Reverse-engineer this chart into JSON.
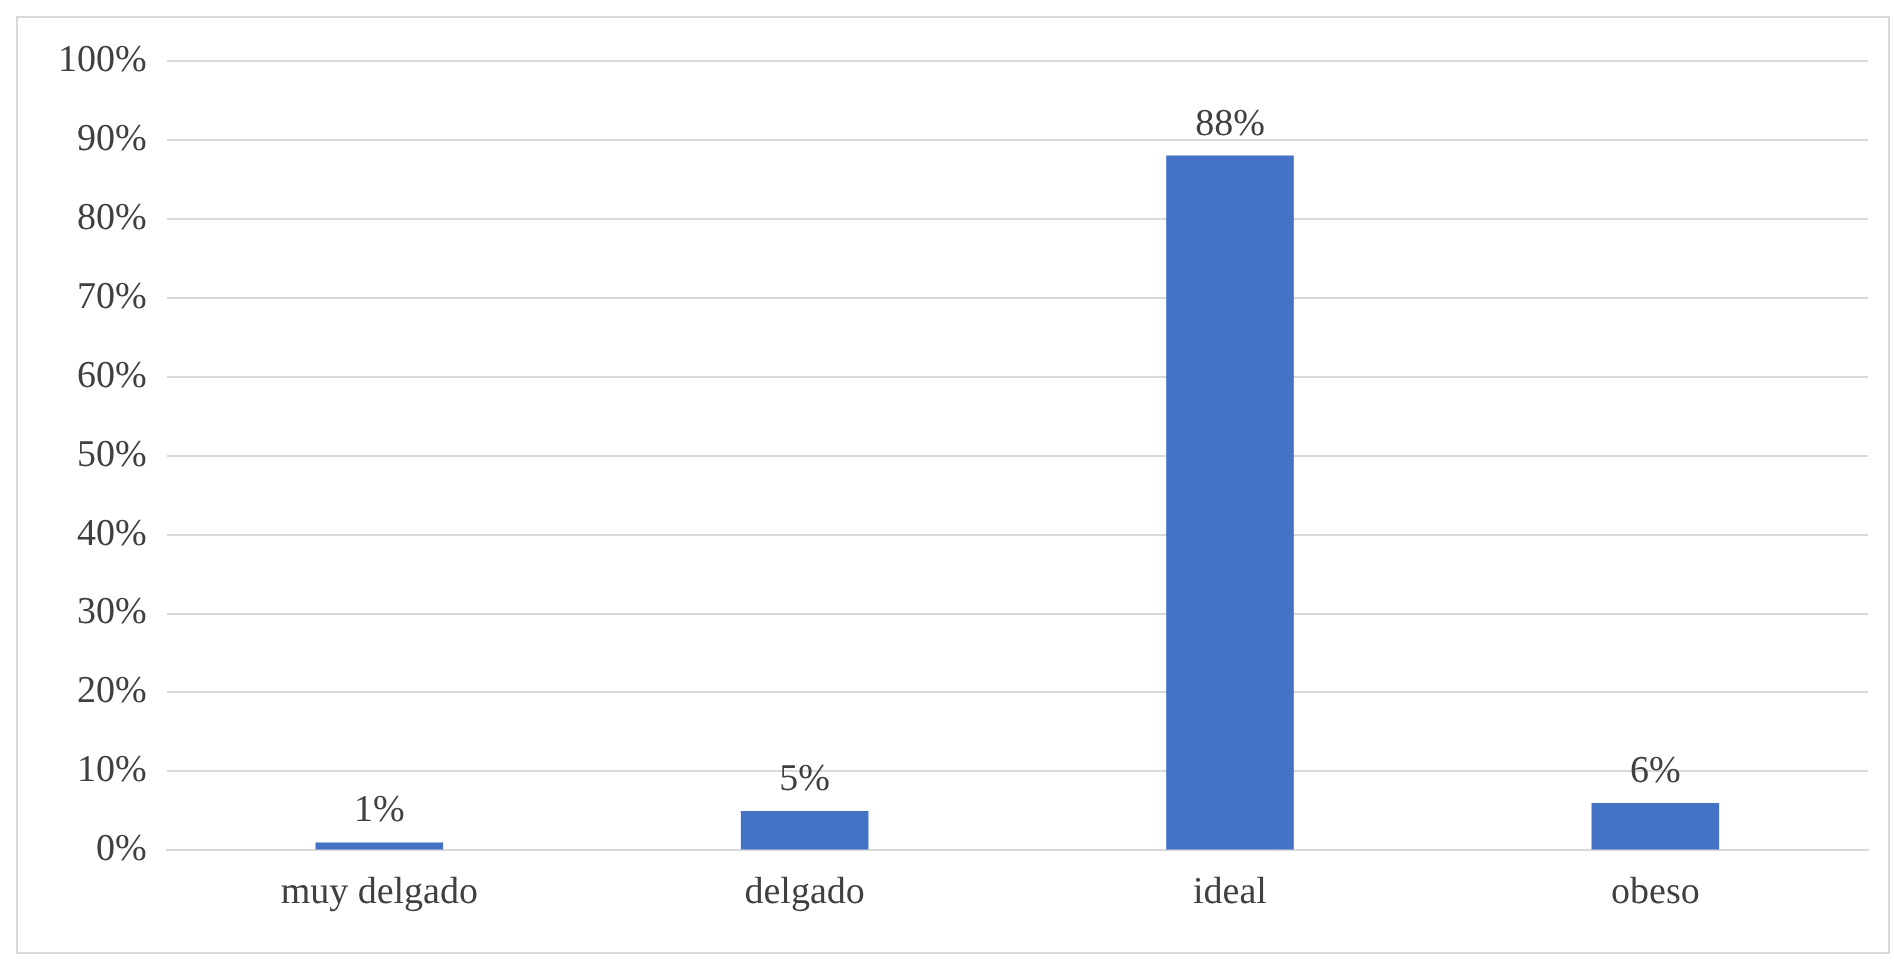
{
  "chart_data": {
    "type": "bar",
    "categories": [
      "muy delgado",
      "delgado",
      "ideal",
      "obeso"
    ],
    "values": [
      1,
      5,
      88,
      6
    ],
    "value_labels": [
      "1%",
      "5%",
      "88%",
      "6%"
    ],
    "color": "#4472c4",
    "ylim": [
      0,
      100
    ],
    "yticks": [
      {
        "value": 0,
        "label": "0%"
      },
      {
        "value": 10,
        "label": "10%"
      },
      {
        "value": 20,
        "label": "20%"
      },
      {
        "value": 30,
        "label": "30%"
      },
      {
        "value": 40,
        "label": "40%"
      },
      {
        "value": 50,
        "label": "50%"
      },
      {
        "value": 60,
        "label": "60%"
      },
      {
        "value": 70,
        "label": "70%"
      },
      {
        "value": 80,
        "label": "80%"
      },
      {
        "value": 90,
        "label": "90%"
      },
      {
        "value": 100,
        "label": "100%"
      }
    ],
    "grid": "y",
    "legend": false
  }
}
